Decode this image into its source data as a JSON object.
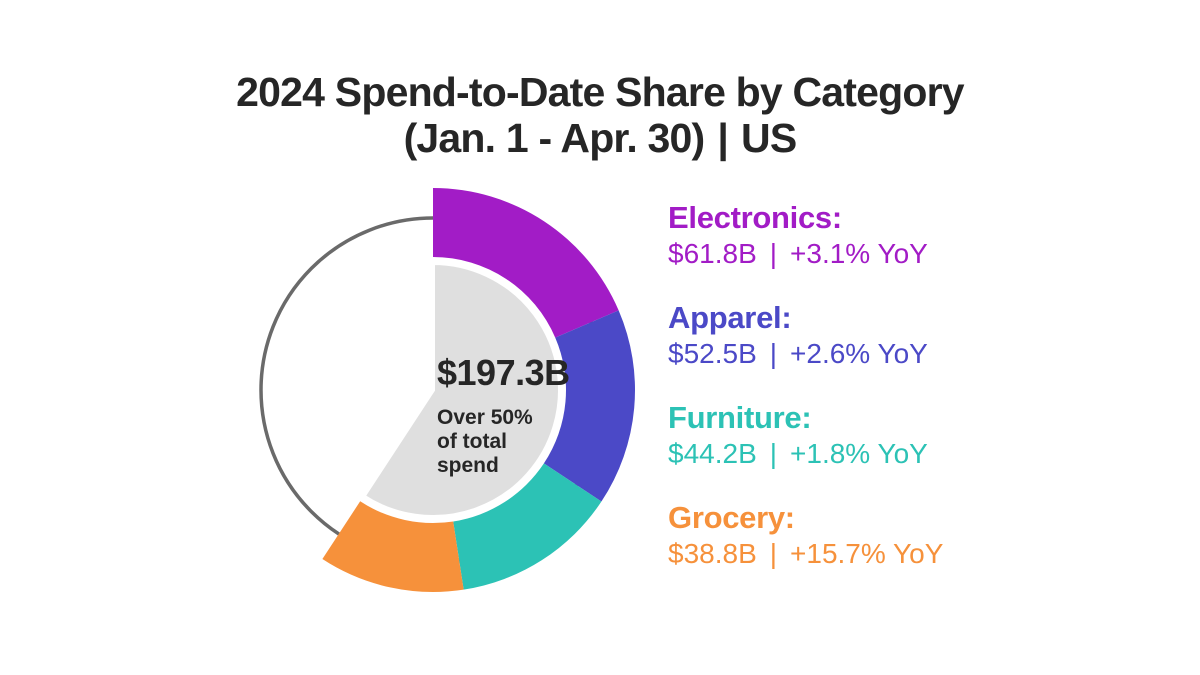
{
  "chart_data": {
    "type": "donut",
    "title": "2024 Spend-to-Date Share by Category",
    "subtitle_left": "(Jan. 1 - Apr. 30)",
    "subtitle_separator": "|",
    "subtitle_right": "US",
    "center_total": "$197.3B",
    "center_note_lines": [
      "Over 50%",
      "of total",
      "spend"
    ],
    "arc_total_degrees": 213.2,
    "start_angle_degrees": 0,
    "legend_position": "right",
    "center_fill": "#DFDFDF",
    "reference_circle_color": "#6A6A6A",
    "text_color": "#262626",
    "segments": [
      {
        "label": "Electronics:",
        "value_billions": 61.8,
        "amount": "$61.8B",
        "separator": "|",
        "yoy": "+3.1% YoY",
        "color": "#A21CC6"
      },
      {
        "label": "Apparel:",
        "value_billions": 52.5,
        "amount": "$52.5B",
        "separator": "|",
        "yoy": "+2.6% YoY",
        "color": "#4B49C7"
      },
      {
        "label": "Furniture:",
        "value_billions": 44.2,
        "amount": "$44.2B",
        "separator": "|",
        "yoy": "+1.8% YoY",
        "color": "#2CC2B5"
      },
      {
        "label": "Grocery:",
        "value_billions": 38.8,
        "amount": "$38.8B",
        "separator": "|",
        "yoy": "+15.7% YoY",
        "color": "#F6913B"
      }
    ]
  }
}
